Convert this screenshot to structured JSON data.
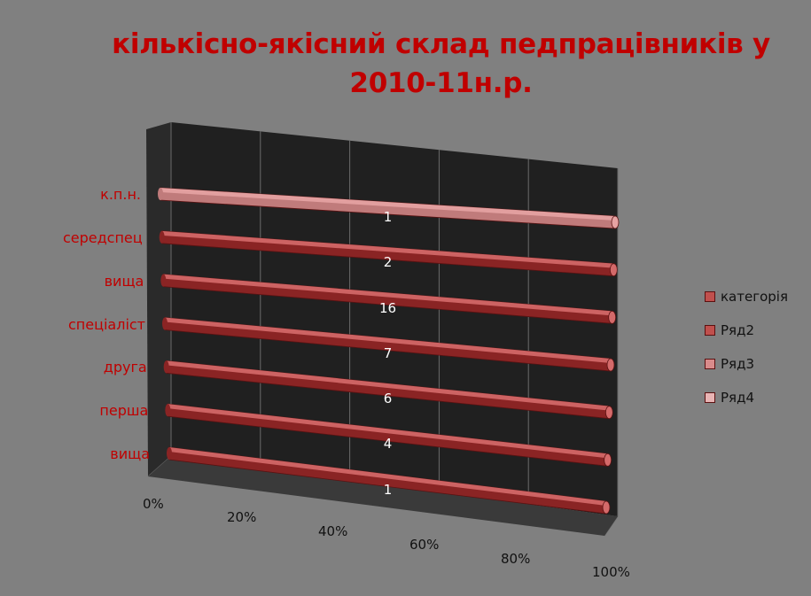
{
  "chart_data": {
    "type": "bar",
    "orientation": "horizontal",
    "stacked": "percent",
    "title_lines": [
      "кількісно-якісний склад педпрацівників у",
      "2010-11н.р."
    ],
    "categories": [
      "вища",
      "перша",
      "друга",
      "спеціаліст",
      "вища",
      "середспец",
      "к.п.н."
    ],
    "data_labels": [
      "1",
      "4",
      "6",
      "7",
      "16",
      "2",
      "1"
    ],
    "series": [
      {
        "name": "категорія",
        "values": [
          1,
          4,
          6,
          7,
          0,
          0,
          0
        ],
        "color": "#c0504d"
      },
      {
        "name": "Ряд2",
        "values": [
          0,
          0,
          0,
          0,
          16,
          2,
          0
        ],
        "color": "#c0504d"
      },
      {
        "name": "Ряд3",
        "values": [
          0,
          0,
          0,
          0,
          0,
          0,
          1
        ],
        "color": "#d98b8b"
      },
      {
        "name": "Ряд4",
        "values": [
          0,
          0,
          0,
          0,
          0,
          0,
          0
        ],
        "color": "#e8b4b4"
      }
    ],
    "x_ticks": [
      "0%",
      "20%",
      "40%",
      "60%",
      "80%",
      "100%"
    ],
    "xlim": [
      0,
      100
    ],
    "grid": true,
    "legend_position": "right",
    "colors": {
      "background": "#808080",
      "wall": "#202020",
      "floor": "#3a3a3a",
      "title": "#c00000",
      "category_label": "#c00000",
      "bar_dark": "#8a2424",
      "bar_top": "#d46a6a",
      "bar_top_light": "#e6a3a3"
    }
  }
}
